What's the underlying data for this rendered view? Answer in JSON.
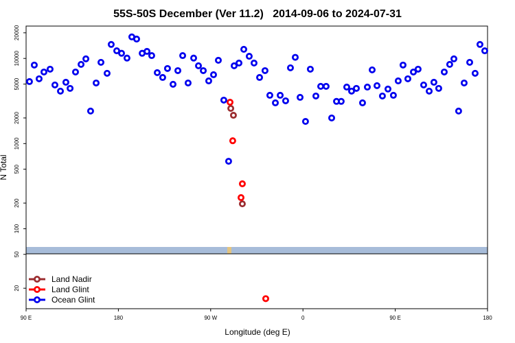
{
  "chart_data": {
    "type": "scatter",
    "title": "55S-50S December (Ver 11.2)   2014-09-06 to 2024-07-31",
    "xlabel": "Longitude (deg E)",
    "ylabel": "N Total",
    "log_y": true,
    "legend": "bottom-left",
    "xlim": [
      90,
      540
    ],
    "xticks": [
      {
        "value": 90,
        "label": "90 E"
      },
      180,
      {
        "value": 270,
        "label": "90 W"
      },
      {
        "value": 360,
        "label": "0"
      },
      {
        "value": 450,
        "label": "90 E"
      },
      {
        "value": 540,
        "label": "180"
      }
    ],
    "ylim": [
      11.5,
      24000
    ],
    "yticks": [
      20,
      50,
      100,
      200,
      500,
      1000,
      2000,
      5000,
      10000,
      20000
    ],
    "series": [
      {
        "name": "Land Nadir",
        "color": "#9b2d30",
        "x": [
          289.6,
          292.2,
          300.9
        ],
        "values": [
          2590,
          2150,
          196
        ]
      },
      {
        "name": "Land Glint",
        "color": "#ff0000",
        "x": [
          288.9,
          291.5,
          300.9,
          299.6,
          323.7
        ],
        "values": [
          3060,
          1080,
          337,
          232,
          15.1
        ]
      },
      {
        "name": "Ocean Glint",
        "color": "#0000ee",
        "x": [
          93.3,
          98.0,
          102.7,
          107.4,
          113.4,
          118.1,
          123.5,
          128.8,
          132.9,
          138.2,
          143.6,
          148.3,
          152.9,
          158.3,
          163.0,
          169.0,
          173.0,
          178.4,
          183.1,
          188.4,
          193.1,
          197.8,
          203.2,
          207.9,
          212.5,
          217.9,
          223.2,
          227.9,
          233.3,
          238.0,
          242.7,
          248.0,
          253.4,
          258.1,
          262.8,
          268.1,
          272.8,
          277.5,
          282.8,
          287.5,
          292.9,
          297.6,
          302.3,
          307.6,
          312.3,
          317.7,
          323.0,
          327.7,
          333.1,
          337.8,
          343.1,
          347.8,
          352.5,
          357.2,
          362.5,
          367.2,
          372.6,
          377.3,
          382.6,
          388.0,
          392.7,
          397.3,
          402.7,
          407.4,
          412.1,
          418.1,
          422.8,
          427.5,
          432.2,
          437.5,
          442.9,
          448.2,
          452.9,
          457.6,
          462.3,
          467.7,
          472.3,
          477.7,
          483.1,
          487.7,
          492.4,
          497.8,
          503.1,
          507.2,
          511.8,
          517.2,
          522.6,
          527.9,
          532.6,
          537.3
        ],
        "values": [
          5350,
          8360,
          5770,
          6930,
          7480,
          4880,
          4130,
          5250,
          4450,
          6930,
          8510,
          9890,
          2410,
          5150,
          9000,
          6690,
          14600,
          12300,
          11500,
          10100,
          17900,
          16900,
          11500,
          12100,
          10800,
          6810,
          5980,
          7620,
          4970,
          7190,
          10800,
          5150,
          10100,
          8200,
          7190,
          5450,
          6440,
          9510,
          3240,
          620,
          8200,
          8830,
          12800,
          10600,
          8830,
          5980,
          7190,
          3690,
          3010,
          3690,
          3180,
          7760,
          10300,
          3490,
          1820,
          7480,
          3620,
          4700,
          4700,
          2000,
          3130,
          3130,
          4610,
          4130,
          4450,
          3010,
          4610,
          7340,
          4790,
          3620,
          4370,
          3690,
          5450,
          8360,
          5770,
          6930,
          7480,
          4880,
          4130,
          5250,
          4450,
          6930,
          8510,
          9890,
          2410,
          5150,
          9000,
          6690,
          14600,
          12300
        ]
      }
    ]
  }
}
